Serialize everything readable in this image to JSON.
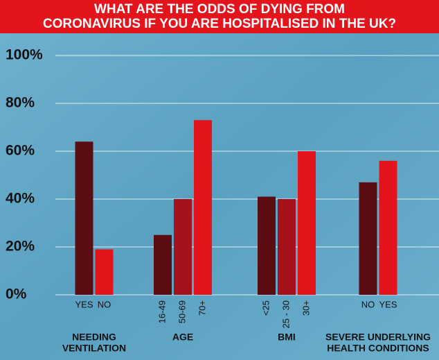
{
  "chart_data": {
    "type": "bar",
    "title": [
      "WHAT ARE THE ODDS OF DYING FROM",
      "CORONAVIRUS IF YOU ARE HOSPITALISED IN THE UK?"
    ],
    "ylim": [
      0,
      100
    ],
    "yticks": [
      {
        "value": 0,
        "label": "0%"
      },
      {
        "value": 20,
        "label": "20%"
      },
      {
        "value": 40,
        "label": "40%"
      },
      {
        "value": 60,
        "label": "60%"
      },
      {
        "value": 80,
        "label": "80%"
      },
      {
        "value": 100,
        "label": "100%"
      }
    ],
    "grid": true,
    "groups": [
      {
        "name": [
          "NEEDING",
          "VENTILATION"
        ],
        "categories": [
          "YES",
          "NO"
        ],
        "values": [
          64,
          19
        ],
        "colors": [
          "#5c0d14",
          "#e3141c"
        ]
      },
      {
        "name": [
          "AGE"
        ],
        "categories": [
          "16-49",
          "50-69",
          "70+"
        ],
        "values": [
          25,
          40,
          73
        ],
        "colors": [
          "#5c0d14",
          "#a5121b",
          "#e3141c"
        ]
      },
      {
        "name": [
          "BMI"
        ],
        "categories": [
          "<25",
          "25 - 30",
          "30+"
        ],
        "values": [
          41,
          40,
          60
        ],
        "colors": [
          "#5c0d14",
          "#a5121b",
          "#e3141c"
        ]
      },
      {
        "name": [
          "SEVERE UNDERLYING",
          "HEALTH CONDITIONS"
        ],
        "categories": [
          "NO",
          "YES"
        ],
        "values": [
          47,
          56
        ],
        "colors": [
          "#5c0d14",
          "#e3141c"
        ]
      }
    ]
  }
}
